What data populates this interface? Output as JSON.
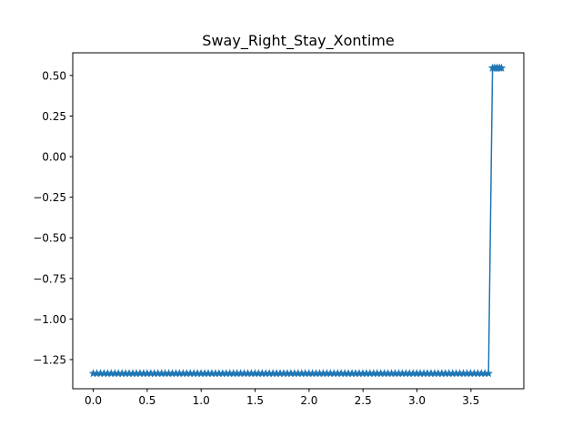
{
  "chart_data": {
    "type": "line",
    "title": "Sway_Right_Stay_Xontime",
    "xlabel": "",
    "ylabel": "",
    "xlim": [
      -0.19,
      3.99
    ],
    "ylim": [
      -1.4296,
      0.6396
    ],
    "xticks": [
      0.0,
      0.5,
      1.0,
      1.5,
      2.0,
      2.5,
      3.0,
      3.5
    ],
    "xtick_labels": [
      "0.0",
      "0.5",
      "1.0",
      "1.5",
      "2.0",
      "2.5",
      "3.0",
      "3.5"
    ],
    "yticks": [
      0.5,
      0.25,
      0.0,
      -0.25,
      -0.5,
      -0.75,
      -1.0,
      -1.25
    ],
    "ytick_labels": [
      "0.50",
      "0.25",
      "0.00",
      "−0.25",
      "−0.50",
      "−0.75",
      "−1.00",
      "−1.25"
    ],
    "grid": false,
    "legend": "none",
    "marker": "star",
    "line_color": "#1f77b4",
    "series": [
      {
        "segments": [
          {
            "x_start": 0.0,
            "x_end": 3.68,
            "step": 0.0333,
            "y": -1.3356
          },
          {
            "x_start": 3.7,
            "x_end": 3.8,
            "step": 0.0167,
            "y": 0.5456
          }
        ]
      }
    ]
  }
}
